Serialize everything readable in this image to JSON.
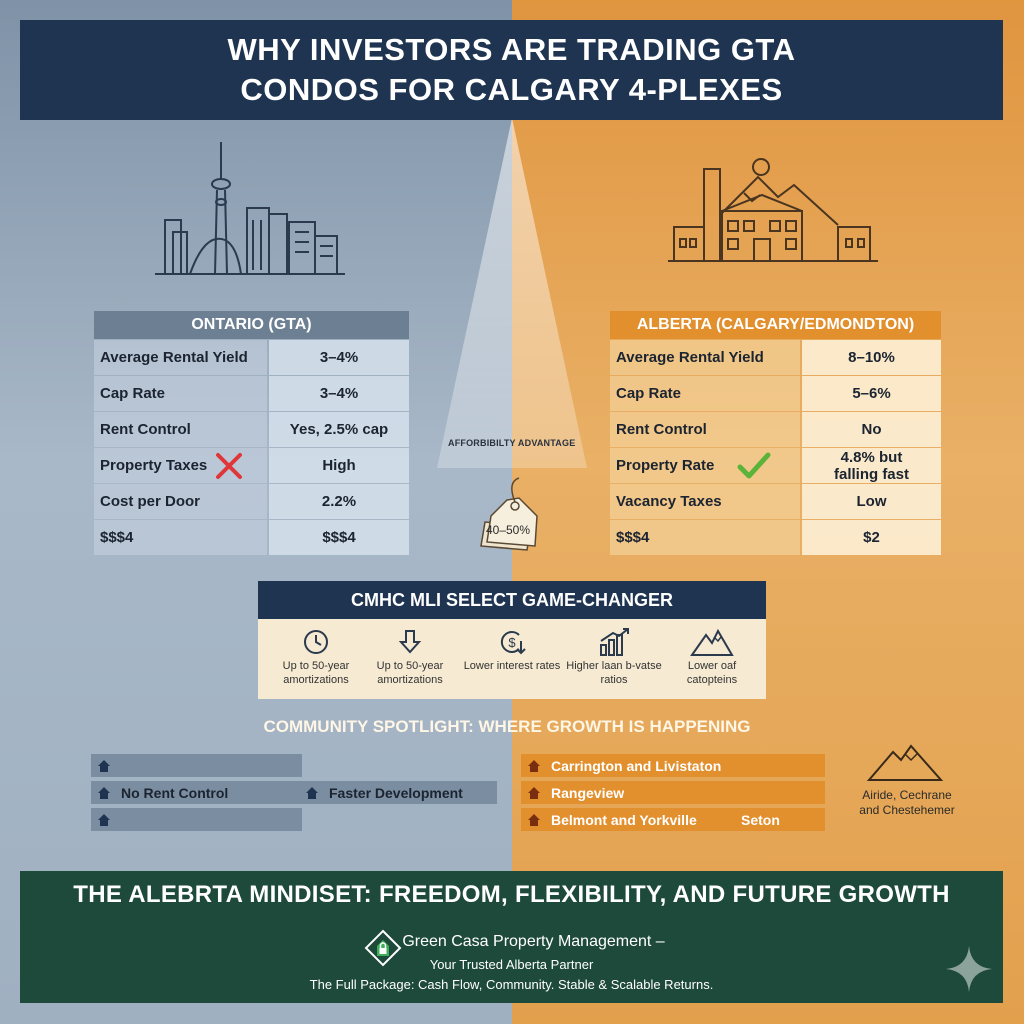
{
  "title": {
    "line1": "WHY INVESTORS ARE TRADING GTA",
    "line2": "CONDOS FOR CALGARY 4-PLEXES"
  },
  "ontario": {
    "header": "ONTARIO (GTA)",
    "rows": [
      {
        "label": "Average Rental Yield",
        "value": "3–4%"
      },
      {
        "label": "Cap Rate",
        "value": "3–4%"
      },
      {
        "label": "Rent Control",
        "value": "Yes, 2.5% cap"
      },
      {
        "label": "Property Taxes",
        "value": "High"
      },
      {
        "label": "Cost per Door",
        "value": "2.2%"
      },
      {
        "label": "$$$4",
        "value": "$$$4"
      }
    ]
  },
  "alberta": {
    "header": "ALBERTA (CALGARY/EDMONDTON)",
    "rows": [
      {
        "label": "Average Rental Yield",
        "value": "8–10%"
      },
      {
        "label": "Cap Rate",
        "value": "5–6%"
      },
      {
        "label": "Rent Control",
        "value": "No"
      },
      {
        "label": "Property Rate",
        "value": "4.8% but falling fast"
      },
      {
        "label": "Vacancy Taxes",
        "value": "Low"
      },
      {
        "label": "$$$4",
        "value": "$2"
      }
    ]
  },
  "afford": {
    "label": "AFFORBIBILTY ADVANTAGE",
    "tag": "40–50%"
  },
  "cmhc": {
    "title": "CMHC MLI SELECT GAME-CHANGER",
    "features": [
      {
        "icon": "clock-icon",
        "label": "Up to 50-year amortizations"
      },
      {
        "icon": "down-arrow-icon",
        "label": "Up to 50-year amortizations"
      },
      {
        "icon": "dollar-down-icon",
        "label": "Lower interest rates"
      },
      {
        "icon": "bar-growth-icon",
        "label": "Higher laan b-vatse ratios"
      },
      {
        "icon": "mountain-icon",
        "label": "Lower oaf catopteins"
      }
    ]
  },
  "spotlight": {
    "title": "COMMUNITY SPOTLIGHT: WHERE GROWTH IS HAPPENING",
    "left": {
      "row2_a": "No Rent Control",
      "row2_b": "Faster Development"
    },
    "right": [
      "Carrington and Livistaton",
      "Rangeview",
      "Belmont and Yorkville"
    ],
    "right_extra": "Seton",
    "side": "Airide, Cechrane and Chestehemer"
  },
  "footer": {
    "mindset": "THE ALEBRTA MINDISET: FREEDOM, FLEXIBILITY, AND FUTURE GROWTH",
    "brand": "Green Casa Property Management –",
    "partner": "Your Trusted Alberta Partner",
    "package": "The Full Package: Cash Flow, Community. Stable & Scalable Returns."
  },
  "colors": {
    "navy": "#1e3450",
    "orange": "#e28f2e",
    "forest": "#1e4a3b",
    "slate": "#6d7f92",
    "red_x": "#e0363a",
    "green_check": "#5cb33a"
  }
}
